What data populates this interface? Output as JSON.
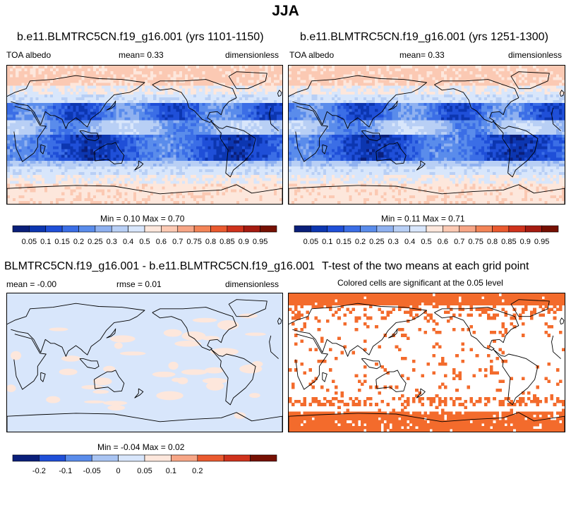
{
  "title": "JJA",
  "panels": [
    {
      "id": "p1",
      "title": "b.e11.BLMTRC5CN.f19_g16.001 (yrs 1101-1150)",
      "left_label": "TOA albedo",
      "center_label": "mean=   0.33",
      "right_label": "dimensionless",
      "minmax": "Min =   0.10 Max =   0.70"
    },
    {
      "id": "p2",
      "title": "b.e11.BLMTRC5CN.f19_g16.001 (yrs 1251-1300)",
      "left_label": "TOA albedo",
      "center_label": "mean=   0.33",
      "right_label": "dimensionless",
      "minmax": "Min =   0.11 Max =   0.71"
    },
    {
      "id": "p3",
      "title": "BLMTRC5CN.f19_g16.001 - b.e11.BLMTRC5CN.f19_g16.001",
      "left_label": "mean =  -0.00",
      "center_label": "rmse =   0.01",
      "right_label": "dimensionless",
      "minmax": "Min =  -0.04 Max =   0.02"
    },
    {
      "id": "p4",
      "title": "T-test of the two means at each grid point",
      "subtitle": "Colored cells are significant at the 0.05 level"
    }
  ],
  "colorbar_abs": {
    "labels": [
      "0.05",
      "0.1",
      "0.15",
      "0.2",
      "0.25",
      "0.3",
      "0.4",
      "0.5",
      "0.6",
      "0.7",
      "0.75",
      "0.8",
      "0.85",
      "0.9",
      "0.95"
    ],
    "colors": [
      "#0a1f7a",
      "#0c36b0",
      "#1f4fd8",
      "#3b6ee6",
      "#5a8ceb",
      "#8fb1f0",
      "#b8cff5",
      "#d8e6fb",
      "#fde7dc",
      "#fbc9b3",
      "#f7a686",
      "#f38457",
      "#ea5a2f",
      "#cf321c",
      "#a51b11",
      "#761003"
    ]
  },
  "colorbar_diff": {
    "labels": [
      "-0.2",
      "-0.1",
      "-0.05",
      "0",
      "0.05",
      "0.1",
      "0.2"
    ],
    "colors": [
      "#0a1f7a",
      "#1f4fd8",
      "#5a8ceb",
      "#a9c4f2",
      "#d8e6fb",
      "#fde7dc",
      "#f7a686",
      "#ea5a2f",
      "#cf321c",
      "#761003"
    ]
  },
  "chart_data": [
    {
      "type": "heatmap",
      "title": "b.e11.BLMTRC5CN.f19_g16.001 (yrs 1101-1150)",
      "variable": "TOA albedo",
      "units": "dimensionless",
      "mean": 0.33,
      "min": 0.1,
      "max": 0.7,
      "levels": [
        0.05,
        0.1,
        0.15,
        0.2,
        0.25,
        0.3,
        0.4,
        0.5,
        0.6,
        0.7,
        0.75,
        0.8,
        0.85,
        0.9,
        0.95
      ]
    },
    {
      "type": "heatmap",
      "title": "b.e11.BLMTRC5CN.f19_g16.001 (yrs 1251-1300)",
      "variable": "TOA albedo",
      "units": "dimensionless",
      "mean": 0.33,
      "min": 0.11,
      "max": 0.71,
      "levels": [
        0.05,
        0.1,
        0.15,
        0.2,
        0.25,
        0.3,
        0.4,
        0.5,
        0.6,
        0.7,
        0.75,
        0.8,
        0.85,
        0.9,
        0.95
      ]
    },
    {
      "type": "heatmap",
      "title": "BLMTRC5CN.f19_g16.001 - b.e11.BLMTRC5CN.f19_g16.001",
      "units": "dimensionless",
      "mean": -0.0,
      "rmse": 0.01,
      "min": -0.04,
      "max": 0.02,
      "levels": [
        -0.2,
        -0.1,
        -0.05,
        0,
        0.05,
        0.1,
        0.2
      ]
    },
    {
      "type": "heatmap",
      "title": "T-test of the two means at each grid point",
      "subtitle": "Colored cells are significant at the 0.05 level",
      "significance_level": 0.05
    }
  ]
}
